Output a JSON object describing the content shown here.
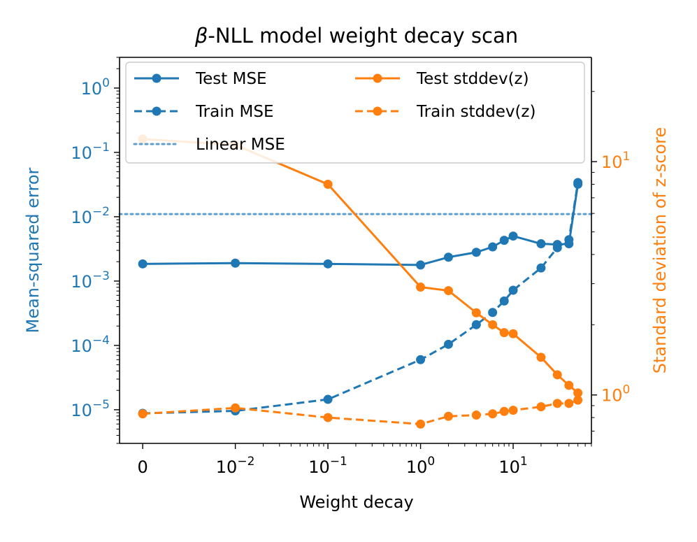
{
  "chart_data": {
    "type": "line",
    "title_symbol": "β",
    "title_rest": "-NLL model weight decay scan",
    "xlabel": "Weight decay",
    "ylabel_left": "Mean-squared error",
    "ylabel_right": "Standard deviation of z-score",
    "x_scale": "symlog",
    "x_linthresh": 0.01,
    "xlim": [
      -0.0025,
      70
    ],
    "ylim_left": [
      3e-06,
      3
    ],
    "ylim_right": [
      0.62,
      28
    ],
    "y_scale_left": "log",
    "y_scale_right": "log",
    "x_ticks": [
      {
        "value": 0,
        "base": "0",
        "exp": ""
      },
      {
        "value": 0.01,
        "base": "10",
        "exp": "−2"
      },
      {
        "value": 0.1,
        "base": "10",
        "exp": "−1"
      },
      {
        "value": 1,
        "base": "10",
        "exp": "0"
      },
      {
        "value": 10,
        "base": "10",
        "exp": "1"
      }
    ],
    "y_left_ticks": [
      {
        "value": 1e-05,
        "base": "10",
        "exp": "−5"
      },
      {
        "value": 0.0001,
        "base": "10",
        "exp": "−4"
      },
      {
        "value": 0.001,
        "base": "10",
        "exp": "−3"
      },
      {
        "value": 0.01,
        "base": "10",
        "exp": "−2"
      },
      {
        "value": 0.1,
        "base": "10",
        "exp": "−1"
      },
      {
        "value": 1,
        "base": "10",
        "exp": "0"
      }
    ],
    "y_right_ticks": [
      {
        "value": 1,
        "base": "10",
        "exp": "0"
      },
      {
        "value": 10,
        "base": "10",
        "exp": "1"
      }
    ],
    "x": [
      0,
      0.01,
      0.1,
      1,
      2,
      4,
      6,
      8,
      10,
      20,
      30,
      40,
      50
    ],
    "series": [
      {
        "name": "Test MSE",
        "axis": "left",
        "style": "solid",
        "color": "#1f77b4",
        "values": [
          0.00185,
          0.0019,
          0.00185,
          0.00178,
          0.00235,
          0.0028,
          0.0034,
          0.0043,
          0.005,
          0.0038,
          0.0037,
          0.0038,
          0.032
        ]
      },
      {
        "name": "Train MSE",
        "axis": "left",
        "style": "dashed",
        "color": "#1f77b4",
        "values": [
          8.8e-06,
          9.6e-06,
          1.45e-05,
          6e-05,
          0.000104,
          0.00021,
          0.000325,
          0.00049,
          0.00072,
          0.0016,
          0.0033,
          0.0044,
          0.034
        ]
      },
      {
        "name": "Linear MSE",
        "axis": "left",
        "style": "dotted",
        "color": "#1f77b4",
        "constant": 0.011
      },
      {
        "name": "Test stddev(z)",
        "axis": "right",
        "style": "solid",
        "color": "#ff7f0e",
        "values": [
          12.5,
          11.8,
          8.0,
          2.9,
          2.8,
          2.25,
          2.0,
          1.85,
          1.83,
          1.45,
          1.22,
          1.1,
          1.02
        ]
      },
      {
        "name": "Train stddev(z)",
        "axis": "right",
        "style": "dashed",
        "color": "#ff7f0e",
        "values": [
          0.83,
          0.88,
          0.8,
          0.75,
          0.81,
          0.82,
          0.83,
          0.85,
          0.86,
          0.89,
          0.92,
          0.92,
          0.95
        ]
      }
    ],
    "legend_location": "top"
  }
}
